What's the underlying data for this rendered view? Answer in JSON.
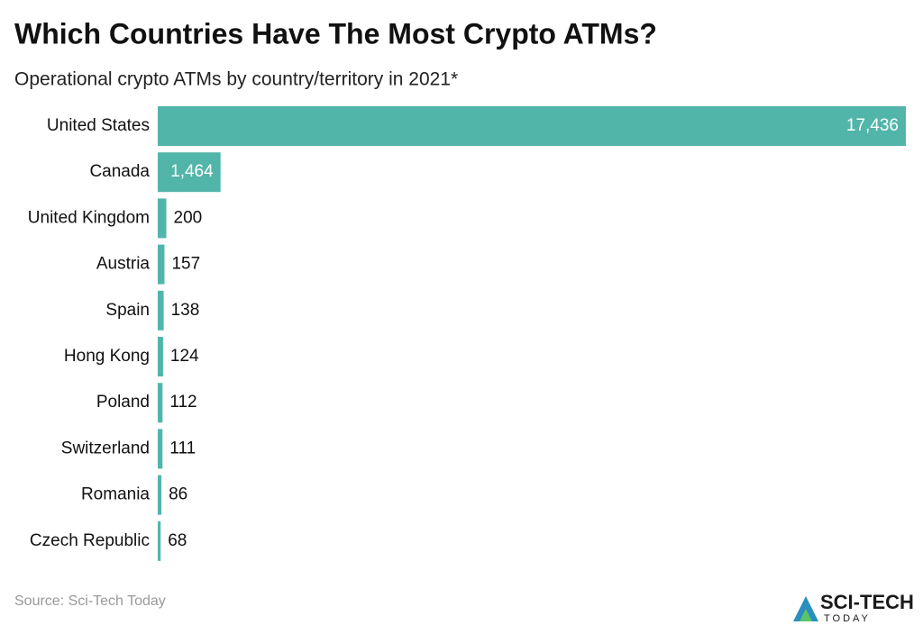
{
  "chart_data": {
    "type": "bar",
    "orientation": "horizontal",
    "title": "Which Countries Have The Most Crypto ATMs?",
    "subtitle": "Operational crypto ATMs by country/territory in 2021*",
    "categories": [
      "United States",
      "Canada",
      "United Kingdom",
      "Austria",
      "Spain",
      "Hong Kong",
      "Poland",
      "Switzerland",
      "Romania",
      "Czech Republic"
    ],
    "values": [
      17436,
      1464,
      200,
      157,
      138,
      124,
      112,
      111,
      86,
      68
    ],
    "value_labels": [
      "17,436",
      "1,464",
      "200",
      "157",
      "138",
      "124",
      "112",
      "111",
      "86",
      "68"
    ],
    "color": "#52b5a9",
    "source": "Source: Sci-Tech Today",
    "brand": "SCI-TECH",
    "brand_sub": "TODAY"
  }
}
